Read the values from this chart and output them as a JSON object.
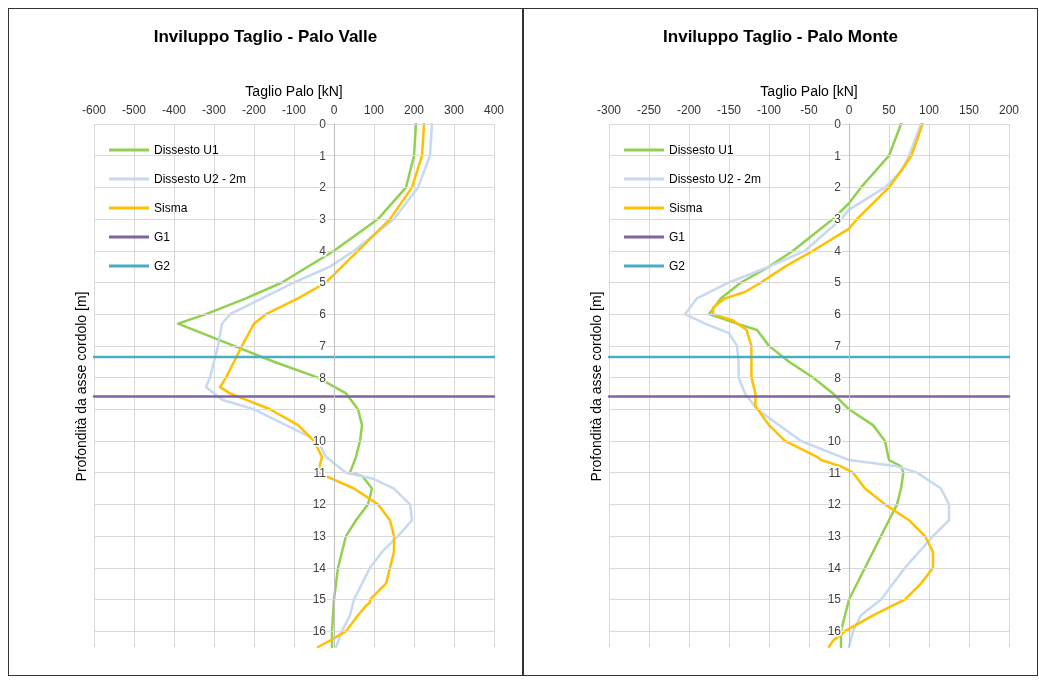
{
  "chart_data": [
    {
      "type": "line",
      "title": "Inviluppo Taglio - Palo Valle",
      "xlabel": "Taglio Palo [kN]",
      "ylabel": "Profondità da asse cordolo [m]",
      "xlim": [
        -600,
        400
      ],
      "xticks": [
        -600,
        -500,
        -400,
        -300,
        -200,
        -100,
        0,
        100,
        200,
        300,
        400
      ],
      "ylim": [
        16.5,
        0
      ],
      "yticks": [
        0,
        1,
        2,
        3,
        4,
        5,
        6,
        7,
        8,
        9,
        10,
        11,
        12,
        13,
        14,
        15,
        16
      ],
      "grid": true,
      "legend": "top left",
      "marker": "none",
      "series": [
        {
          "name": "Dissesto U1",
          "color": "#92d050",
          "x": [
            205,
            200,
            180,
            110,
            0,
            -130,
            -220,
            -320,
            -390,
            -250,
            -150,
            -40,
            30,
            60,
            70,
            65,
            55,
            40,
            70,
            95,
            85,
            55,
            30,
            10,
            0,
            -5,
            -5
          ],
          "values": [
            0,
            1,
            2,
            3,
            4,
            5,
            5.5,
            6,
            6.3,
            7,
            7.5,
            8,
            8.5,
            9,
            9.5,
            10,
            10.5,
            11,
            11.1,
            11.5,
            12,
            12.5,
            13,
            14,
            15,
            16,
            16.5
          ]
        },
        {
          "name": "Dissesto U2 - 2m",
          "color": "#c6d9f1",
          "x": [
            245,
            240,
            210,
            150,
            50,
            -10,
            -100,
            -180,
            -260,
            -280,
            -290,
            -300,
            -310,
            -320,
            -280,
            -200,
            -120,
            -40,
            -20,
            30,
            100,
            150,
            190,
            195,
            160,
            120,
            90,
            70,
            50,
            40,
            20,
            5
          ],
          "values": [
            0,
            1,
            2,
            3,
            4,
            4.5,
            5,
            5.5,
            6,
            6.3,
            7,
            7.5,
            8,
            8.3,
            8.7,
            9,
            9.5,
            10,
            10.5,
            11,
            11.2,
            11.5,
            12,
            12.5,
            13,
            13.5,
            14,
            14.5,
            15,
            15.5,
            16,
            16.5
          ]
        },
        {
          "name": "Sisma",
          "color": "#ffc000",
          "x": [
            225,
            220,
            195,
            140,
            60,
            20,
            -20,
            -90,
            -170,
            -200,
            -230,
            -250,
            -270,
            -285,
            -260,
            -160,
            -90,
            -50,
            -30,
            -40,
            50,
            110,
            140,
            150,
            150,
            140,
            130,
            90,
            90,
            80,
            60,
            30,
            -10,
            -40
          ],
          "values": [
            0,
            1,
            2,
            3,
            4,
            4.5,
            5,
            5.5,
            6,
            6.3,
            7,
            7.5,
            8,
            8.3,
            8.5,
            9,
            9.5,
            10,
            10.5,
            11,
            11.5,
            12,
            12.5,
            13,
            13.5,
            14,
            14.5,
            15,
            15.1,
            15.2,
            15.5,
            16,
            16.3,
            16.5
          ]
        },
        {
          "name": "G1",
          "color": "#8064a2",
          "x": [
            -600,
            400
          ],
          "values": [
            8.6,
            8.6
          ]
        },
        {
          "name": "G2",
          "color": "#4bacc6",
          "x": [
            -600,
            400
          ],
          "values": [
            7.35,
            7.35
          ]
        }
      ]
    },
    {
      "type": "line",
      "title": "Inviluppo Taglio - Palo Monte",
      "xlabel": "Taglio Palo [kN]",
      "ylabel": "Profondità da asse cordolo [m]",
      "xlim": [
        -300,
        200
      ],
      "xticks": [
        -300,
        -250,
        -200,
        -150,
        -100,
        -50,
        0,
        50,
        100,
        150,
        200
      ],
      "ylim": [
        16.5,
        0
      ],
      "yticks": [
        0,
        1,
        2,
        3,
        4,
        5,
        6,
        7,
        8,
        9,
        10,
        11,
        12,
        13,
        14,
        15,
        16
      ],
      "grid": true,
      "legend": "top left",
      "marker": "none",
      "series": [
        {
          "name": "Dissesto U1",
          "color": "#92d050",
          "x": [
            65,
            50,
            15,
            0,
            -20,
            -70,
            -100,
            -135,
            -160,
            -175,
            -140,
            -115,
            -100,
            -75,
            -45,
            -20,
            0,
            30,
            45,
            50,
            65,
            68,
            65,
            60,
            40,
            20,
            0,
            -10,
            -10
          ],
          "values": [
            0,
            1,
            2,
            2.5,
            3,
            4,
            4.5,
            5,
            5.5,
            6,
            6.3,
            6.5,
            7,
            7.5,
            8,
            8.5,
            9,
            9.5,
            10,
            10.6,
            10.8,
            11,
            11.5,
            12,
            13,
            14,
            15,
            16,
            16.5
          ]
        },
        {
          "name": "Dissesto U2 - 2m",
          "color": "#c6d9f1",
          "x": [
            90,
            75,
            65,
            45,
            0,
            -10,
            -55,
            -100,
            -150,
            -190,
            -205,
            -180,
            -150,
            -140,
            -138,
            -138,
            -130,
            -115,
            -60,
            -10,
            0,
            60,
            85,
            115,
            125,
            125,
            105,
            70,
            40,
            15,
            5,
            0
          ],
          "values": [
            0,
            1,
            1.5,
            2,
            2.7,
            3,
            4,
            4.5,
            5,
            5.5,
            6,
            6.3,
            6.6,
            7,
            7.5,
            8,
            8.5,
            9,
            10,
            10.5,
            10.6,
            10.8,
            11,
            11.5,
            12,
            12.5,
            13,
            14,
            15,
            15.5,
            16,
            16.5
          ]
        },
        {
          "name": "Sisma",
          "color": "#ffc000",
          "x": [
            92,
            78,
            70,
            50,
            10,
            0,
            -45,
            -80,
            -110,
            -130,
            -155,
            -170,
            -170,
            -145,
            -128,
            -122,
            -122,
            -122,
            -117,
            -117,
            -100,
            -80,
            -40,
            -35,
            -10,
            5,
            20,
            45,
            75,
            95,
            105,
            105,
            90,
            70,
            30,
            -5,
            -20,
            -25
          ],
          "values": [
            0,
            1,
            1.3,
            2,
            3,
            3.3,
            4,
            4.5,
            5,
            5.3,
            5.5,
            5.8,
            6,
            6.2,
            6.5,
            7,
            7.5,
            8,
            8.5,
            8.9,
            9.5,
            10,
            10.5,
            10.6,
            10.8,
            11,
            11.5,
            12,
            12.5,
            13,
            13.5,
            14,
            14.5,
            15,
            15.5,
            16,
            16.3,
            16.5
          ]
        },
        {
          "name": "G1",
          "color": "#8064a2",
          "x": [
            -300,
            200
          ],
          "values": [
            8.6,
            8.6
          ]
        },
        {
          "name": "G2",
          "color": "#4bacc6",
          "x": [
            -300,
            200
          ],
          "values": [
            7.35,
            7.35
          ]
        }
      ]
    }
  ]
}
